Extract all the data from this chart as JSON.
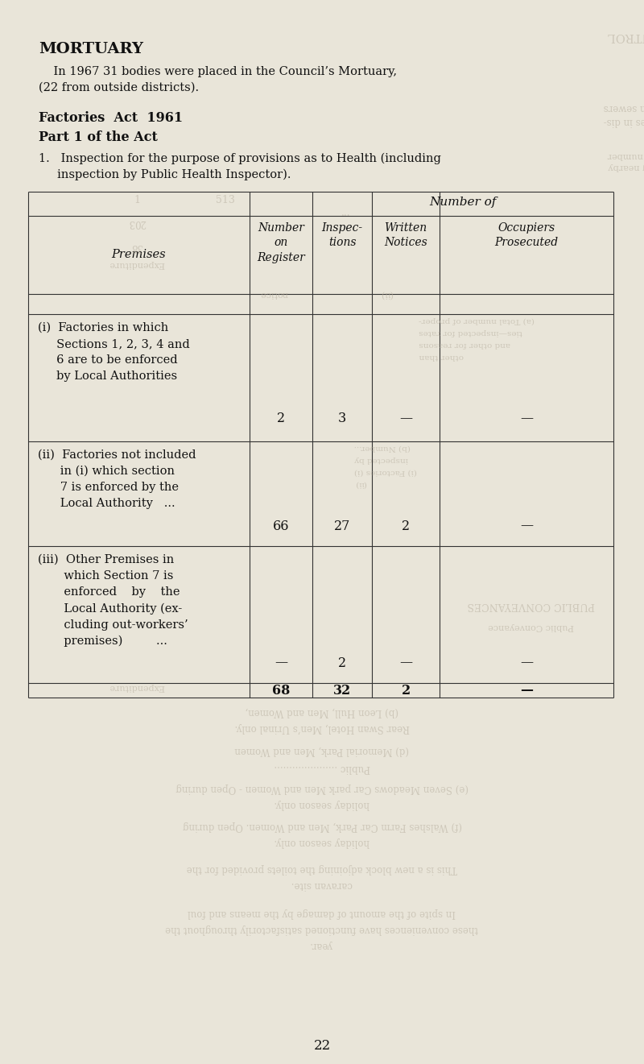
{
  "bg_color": "#e9e5d9",
  "title": "MORTUARY",
  "mortuary_para": "    In 1967 31 bodies were placed in the Council’s Mortuary,\n(22 from outside districts).",
  "factories_title": "Factories  Act  1961",
  "part_title": "Part 1 of the Act",
  "insp_line1": "1.   Inspection for the purpose of provisions as to Health (including",
  "insp_line2": "     inspection by Public Health Inspector).",
  "col_number_of": "Number of",
  "col_premises": "Premises",
  "col_numreg": "Number\non\nRegister",
  "col_inspec": "Inspec-\ntions",
  "col_written": "Written\nNotices",
  "col_occupiers": "Occupiers\nProsecuted",
  "row_i_label": "(i)  Factories in which\n     Sections 1, 2, 3, 4 and\n     6 are to be enforced\n     by Local Authorities",
  "row_i_numreg": "2",
  "row_i_inspec": "3",
  "row_i_written": "—",
  "row_i_occup": "—",
  "row_ii_label": "(ii)  Factories not included\n      in (i) which section\n      7 is enforced by the\n      Local Authority   ...",
  "row_ii_numreg": "66",
  "row_ii_inspec": "27",
  "row_ii_written": "2",
  "row_ii_occup": "—",
  "row_iii_label": "(iii)  Other Premises in\n       which Section 7 is\n       enforced    by    the\n       Local Authority (ex-\n       cluding out-workers’\n       premises)         ...",
  "row_iii_numreg": "—",
  "row_iii_inspec": "2",
  "row_iii_written": "—",
  "row_iii_occup": "—",
  "tot_numreg": "68",
  "tot_inspec": "32",
  "tot_written": "2",
  "tot_occup": "—",
  "page_num": "22",
  "wm_color": "#b8b0a0",
  "wm_alpha": 0.55,
  "line_color": "#333333",
  "text_color": "#111111"
}
